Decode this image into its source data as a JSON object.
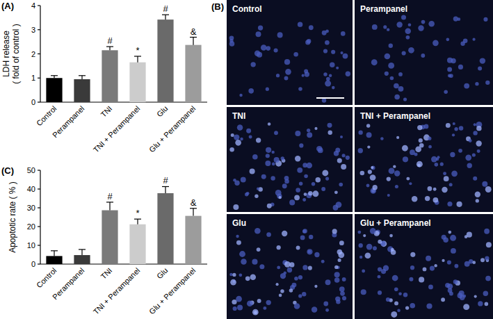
{
  "chart_data": [
    {
      "type": "bar",
      "title": "(A)",
      "y_label": [
        "LDH release",
        "( fold of control )"
      ],
      "categories": [
        "Control",
        "Perampanel",
        "TNI",
        "TNI + Perampanel",
        "Glu",
        "Glu + Perampanel"
      ],
      "values": [
        1.0,
        0.95,
        2.15,
        1.65,
        3.42,
        2.37
      ],
      "errors": [
        0.1,
        0.15,
        0.15,
        0.25,
        0.2,
        0.32
      ],
      "annotations": [
        null,
        null,
        "#",
        "*",
        "#",
        "&"
      ],
      "colors": [
        "#000000",
        "#3a3a3a",
        "#7a7a7a",
        "#cccccc",
        "#6a6a6a",
        "#9c9c9c"
      ],
      "ylim": [
        0,
        4
      ],
      "yticks": [
        0,
        1,
        2,
        3,
        4
      ],
      "grid": false
    },
    {
      "type": "bar",
      "title": "(C)",
      "y_label": [
        "Apoptotic rate ( % )"
      ],
      "categories": [
        "Control",
        "Perampanel",
        "TNI",
        "TNI + Perampanel",
        "Glu",
        "Glu + Perampanel"
      ],
      "values": [
        4.3,
        4.8,
        28.7,
        21.2,
        37.8,
        25.7
      ],
      "errors": [
        2.8,
        3.0,
        4.3,
        2.8,
        3.5,
        4.0
      ],
      "annotations": [
        null,
        null,
        "#",
        "*",
        "#",
        "&"
      ],
      "colors": [
        "#000000",
        "#3a3a3a",
        "#7a7a7a",
        "#cccccc",
        "#6a6a6a",
        "#9c9c9c"
      ],
      "ylim": [
        0,
        50
      ],
      "yticks": [
        0,
        10,
        20,
        30,
        40,
        50
      ],
      "grid": false
    }
  ],
  "image_panel": {
    "label": "(B)",
    "panels": [
      "Control",
      "Perampanel",
      "TNI",
      "TNI + Perampanel",
      "Glu",
      "Glu + Perampanel"
    ]
  }
}
